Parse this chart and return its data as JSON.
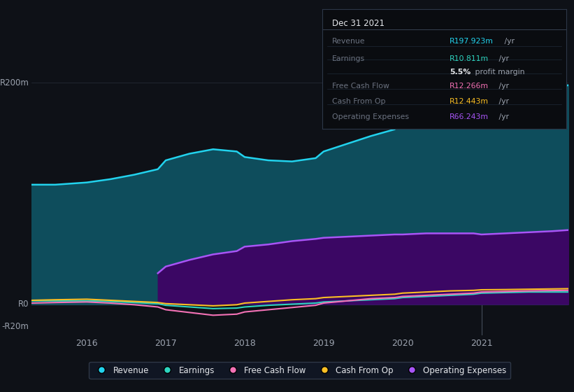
{
  "bg_color": "#0e1117",
  "chart_bg": "#0e1117",
  "title": "Dec 31 2021",
  "ylabel_top": "R200m",
  "ylabel_zero": "R0",
  "ylabel_neg": "-R20m",
  "x_ticks": [
    2016,
    2017,
    2018,
    2019,
    2020,
    2021
  ],
  "ylim": [
    -28,
    220
  ],
  "xlim": [
    2015.3,
    2022.1
  ],
  "info_box": {
    "title": "Dec 31 2021",
    "rows": [
      {
        "label": "Revenue",
        "value": "R197.923m",
        "color": "#22d3ee",
        "suffix": " /yr"
      },
      {
        "label": "Earnings",
        "value": "R10.811m",
        "color": "#2dd4bf",
        "suffix": " /yr"
      },
      {
        "label": "",
        "value": "5.5%",
        "color": "#e5e7eb",
        "suffix": " profit margin",
        "bold_val": true
      },
      {
        "label": "Free Cash Flow",
        "value": "R12.266m",
        "color": "#f472b6",
        "suffix": " /yr"
      },
      {
        "label": "Cash From Op",
        "value": "R12.443m",
        "color": "#fbbf24",
        "suffix": " /yr"
      },
      {
        "label": "Operating Expenses",
        "value": "R66.243m",
        "color": "#a855f7",
        "suffix": " /yr"
      }
    ]
  },
  "series": {
    "revenue": {
      "color": "#22d3ee",
      "fill_color": "#0e4d5c",
      "label": "Revenue",
      "x": [
        2015.3,
        2015.6,
        2016.0,
        2016.3,
        2016.6,
        2016.9,
        2017.0,
        2017.3,
        2017.6,
        2017.9,
        2018.0,
        2018.3,
        2018.6,
        2018.9,
        2019.0,
        2019.3,
        2019.6,
        2019.9,
        2020.0,
        2020.3,
        2020.6,
        2020.9,
        2021.0,
        2021.3,
        2021.6,
        2021.9,
        2022.1
      ],
      "y": [
        108,
        108,
        110,
        113,
        117,
        122,
        130,
        136,
        140,
        138,
        133,
        130,
        129,
        132,
        138,
        145,
        152,
        158,
        165,
        173,
        181,
        186,
        180,
        176,
        183,
        193,
        198
      ]
    },
    "operating_expenses": {
      "color": "#a855f7",
      "fill_color": "#3b0764",
      "label": "Operating Expenses",
      "x": [
        2016.9,
        2017.0,
        2017.3,
        2017.6,
        2017.9,
        2018.0,
        2018.3,
        2018.6,
        2018.9,
        2019.0,
        2019.3,
        2019.6,
        2019.9,
        2020.0,
        2020.3,
        2020.6,
        2020.9,
        2021.0,
        2021.3,
        2021.6,
        2021.9,
        2022.1
      ],
      "y": [
        28,
        34,
        40,
        45,
        48,
        52,
        54,
        57,
        59,
        60,
        61,
        62,
        63,
        63,
        64,
        64,
        64,
        63,
        64,
        65,
        66,
        67
      ]
    },
    "earnings": {
      "color": "#2dd4bf",
      "label": "Earnings",
      "x": [
        2015.3,
        2015.6,
        2016.0,
        2016.3,
        2016.6,
        2016.9,
        2017.0,
        2017.3,
        2017.6,
        2017.9,
        2018.0,
        2018.3,
        2018.6,
        2018.9,
        2019.0,
        2019.3,
        2019.6,
        2019.9,
        2020.0,
        2020.3,
        2020.6,
        2020.9,
        2021.0,
        2021.3,
        2021.6,
        2021.9,
        2022.1
      ],
      "y": [
        3,
        3,
        3,
        2.5,
        1.5,
        0.5,
        -1,
        -2.5,
        -4,
        -3.5,
        -2.5,
        -1,
        0,
        1,
        2,
        3,
        4,
        5,
        6,
        7,
        8,
        9,
        10,
        10.5,
        11,
        11,
        11
      ]
    },
    "free_cash_flow": {
      "color": "#f472b6",
      "label": "Free Cash Flow",
      "x": [
        2015.3,
        2015.6,
        2016.0,
        2016.3,
        2016.6,
        2016.9,
        2017.0,
        2017.3,
        2017.6,
        2017.9,
        2018.0,
        2018.3,
        2018.6,
        2018.9,
        2019.0,
        2019.3,
        2019.6,
        2019.9,
        2020.0,
        2020.3,
        2020.6,
        2020.9,
        2021.0,
        2021.3,
        2021.6,
        2021.9,
        2022.1
      ],
      "y": [
        1,
        1.5,
        2,
        1,
        -0.5,
        -2.5,
        -5,
        -7.5,
        -10,
        -9,
        -7,
        -5,
        -3,
        -1,
        1,
        3,
        5,
        6,
        7,
        8,
        9,
        10,
        11,
        11.5,
        12,
        12.3,
        12.5
      ]
    },
    "cash_from_op": {
      "color": "#fbbf24",
      "label": "Cash From Op",
      "x": [
        2015.3,
        2015.6,
        2016.0,
        2016.3,
        2016.6,
        2016.9,
        2017.0,
        2017.3,
        2017.6,
        2017.9,
        2018.0,
        2018.3,
        2018.6,
        2018.9,
        2019.0,
        2019.3,
        2019.6,
        2019.9,
        2020.0,
        2020.3,
        2020.6,
        2020.9,
        2021.0,
        2021.3,
        2021.6,
        2021.9,
        2022.1
      ],
      "y": [
        3.5,
        4,
        4.5,
        3.5,
        2.5,
        1.5,
        0.5,
        -0.5,
        -1.5,
        -0.5,
        1,
        2.5,
        4,
        5,
        6,
        7,
        8,
        9,
        10,
        11,
        12,
        12.5,
        13,
        13.2,
        13.5,
        13.8,
        14
      ]
    }
  },
  "legend_items": [
    {
      "label": "Revenue",
      "color": "#22d3ee"
    },
    {
      "label": "Earnings",
      "color": "#2dd4bf"
    },
    {
      "label": "Free Cash Flow",
      "color": "#f472b6"
    },
    {
      "label": "Cash From Op",
      "color": "#fbbf24"
    },
    {
      "label": "Operating Expenses",
      "color": "#a855f7"
    }
  ]
}
